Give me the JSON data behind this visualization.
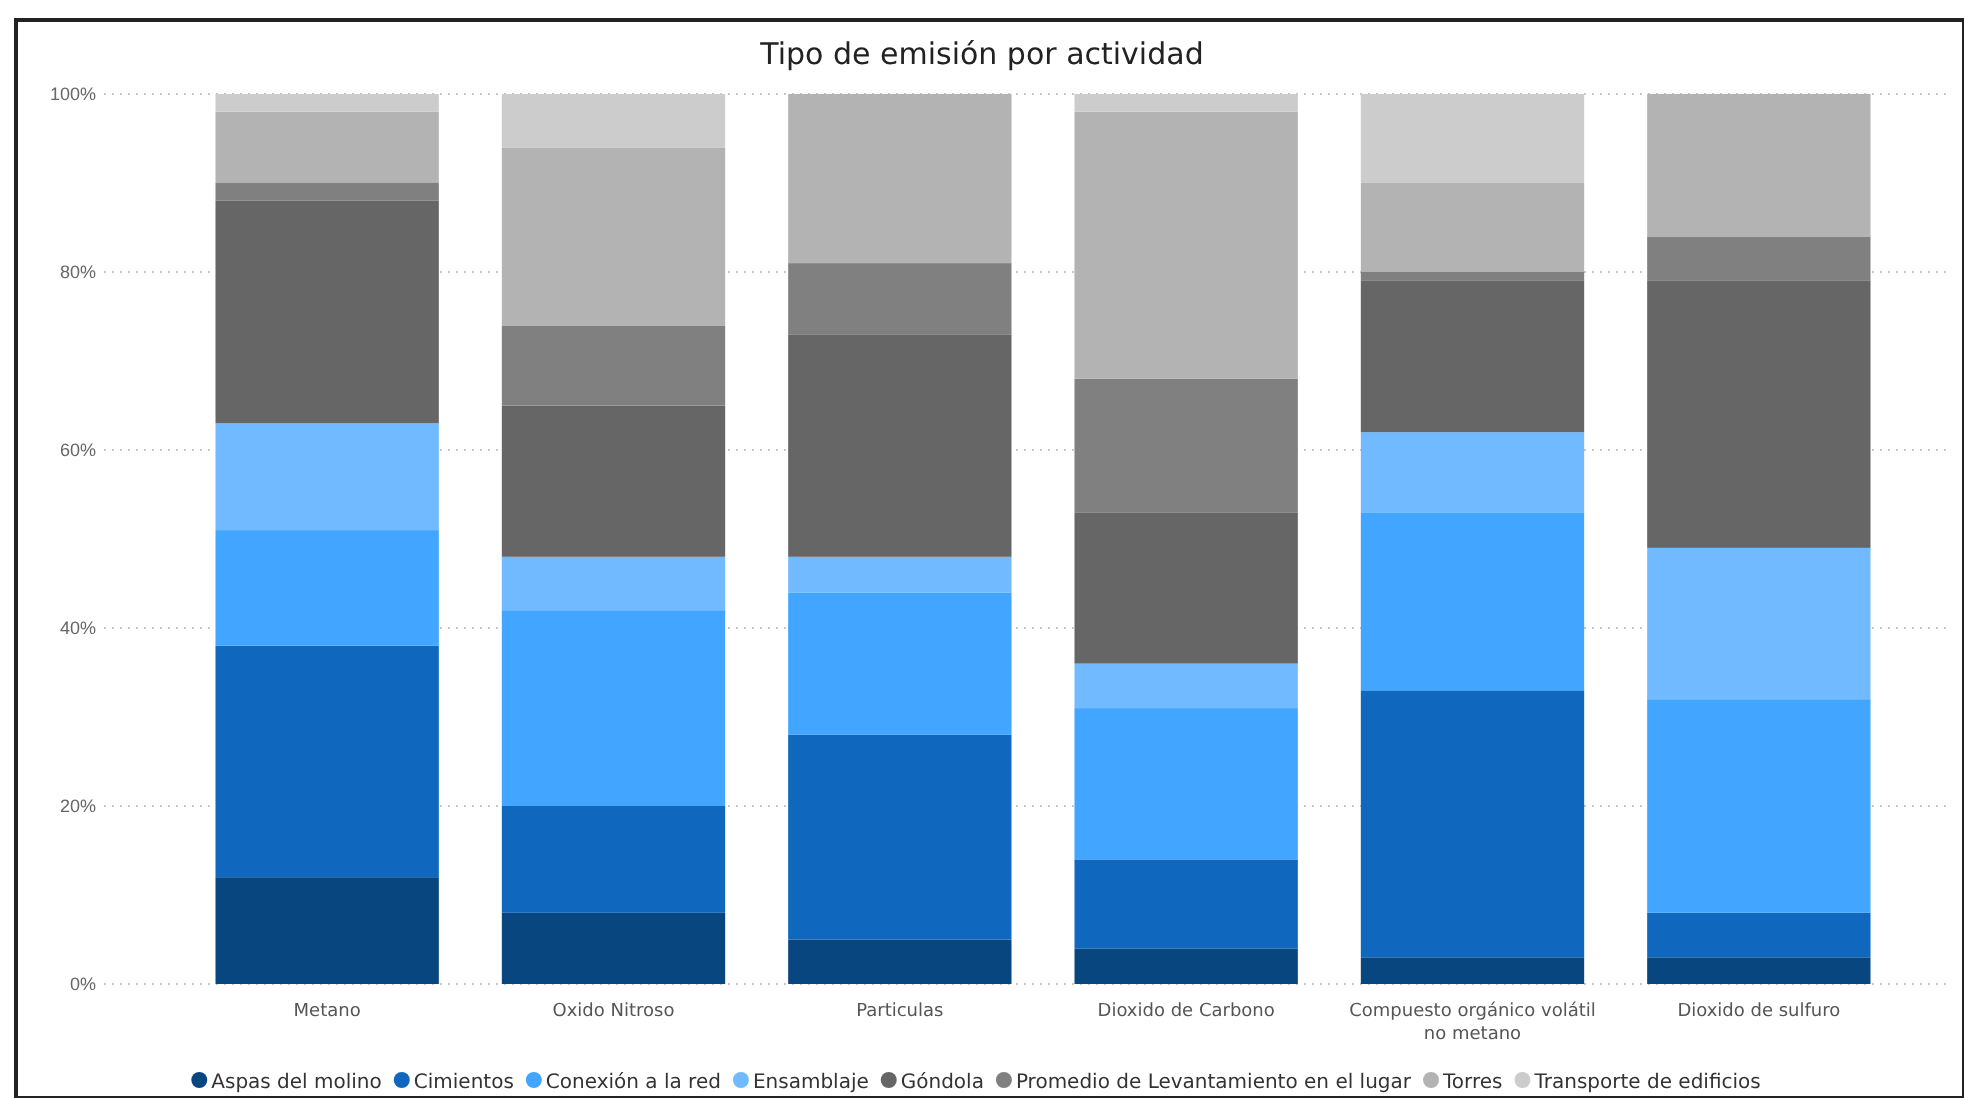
{
  "chart_data": {
    "type": "bar",
    "stacked": true,
    "title": "Tipo de emisión por actividad",
    "categories": [
      "Metano",
      "Oxido Nitroso",
      "Particulas",
      "Dioxido de Carbono",
      "Compuesto orgánico volátil no metano",
      "Dioxido de sulfuro"
    ],
    "series": [
      {
        "name": "Aspas del molino",
        "color": "#084680",
        "values": [
          12,
          8,
          5,
          4,
          3,
          3
        ]
      },
      {
        "name": "Cimientos",
        "color": "#0f68be",
        "values": [
          26,
          12,
          23,
          10,
          30,
          5
        ]
      },
      {
        "name": "Conexión a la red",
        "color": "#42a5ff",
        "values": [
          13,
          22,
          16,
          17,
          20,
          24
        ]
      },
      {
        "name": "Ensamblaje",
        "color": "#71baff",
        "values": [
          12,
          6,
          4,
          5,
          9,
          17
        ]
      },
      {
        "name": "Góndola",
        "color": "#666666",
        "values": [
          25,
          17,
          25,
          17,
          17,
          30
        ]
      },
      {
        "name": "Promedio de Levantamiento en el lugar",
        "color": "#808080",
        "values": [
          2,
          9,
          8,
          15,
          1,
          5
        ]
      },
      {
        "name": "Torres",
        "color": "#b3b3b3",
        "values": [
          8,
          20,
          19,
          30,
          10,
          16
        ]
      },
      {
        "name": "Transporte de edificios",
        "color": "#cccccc",
        "values": [
          2,
          6,
          0,
          2,
          10,
          0
        ]
      }
    ],
    "ylim": [
      0,
      100
    ],
    "yticks": [
      {
        "value": 0,
        "label": "0%"
      },
      {
        "value": 20,
        "label": "20%"
      },
      {
        "value": 40,
        "label": "40%"
      },
      {
        "value": 60,
        "label": "60%"
      },
      {
        "value": 80,
        "label": "80%"
      },
      {
        "value": 100,
        "label": "100%"
      }
    ],
    "grid": "y",
    "legend": "bottom"
  }
}
